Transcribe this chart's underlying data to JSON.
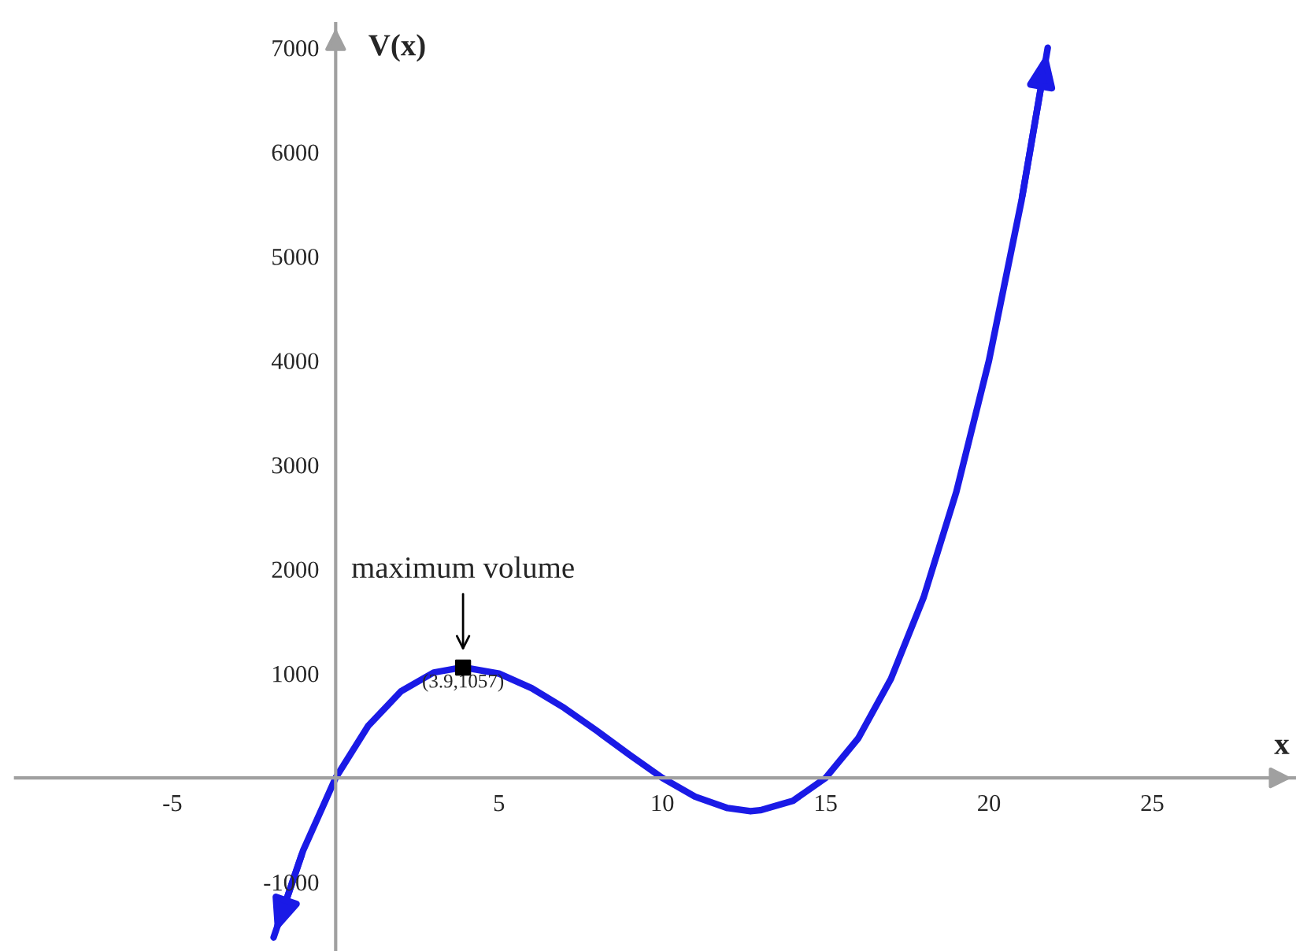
{
  "chart_data": {
    "type": "line",
    "xlabel": "x",
    "ylabel": "V(x)",
    "xlim": [
      -9.8,
      29.4
    ],
    "ylim": [
      -1660,
      7230
    ],
    "xticks": [
      -5,
      5,
      10,
      15,
      20,
      25
    ],
    "yticks": [
      -1000,
      1000,
      2000,
      3000,
      4000,
      5000,
      6000,
      7000
    ],
    "grid": false,
    "line_style": "solid",
    "series": [
      {
        "color": "#1a1ae6",
        "x": [
          -1.9,
          -1,
          0,
          1,
          2,
          3,
          3.9,
          5,
          6,
          7,
          8,
          9,
          10,
          11,
          12,
          12.7,
          13,
          14,
          15,
          16,
          17,
          18,
          19,
          20,
          21,
          21.8
        ],
        "values": [
          -1530,
          -700,
          0,
          500,
          830,
          1010,
          1060,
          1000,
          860,
          670,
          450,
          220,
          0,
          -180,
          -290,
          -320,
          -310,
          -220,
          0,
          380,
          950,
          1730,
          2740,
          4000,
          5540,
          7000
        ]
      },
      {
        "type": "scatter",
        "color": "#000000",
        "marker": "square",
        "x": [
          3.9
        ],
        "values": [
          1057
        ]
      }
    ],
    "annotations": [
      {
        "text": "maximum volume",
        "x": 3.9,
        "y": 1057
      },
      {
        "text": "(3.9,1057)",
        "x": 3.9,
        "y": 1057
      }
    ]
  }
}
